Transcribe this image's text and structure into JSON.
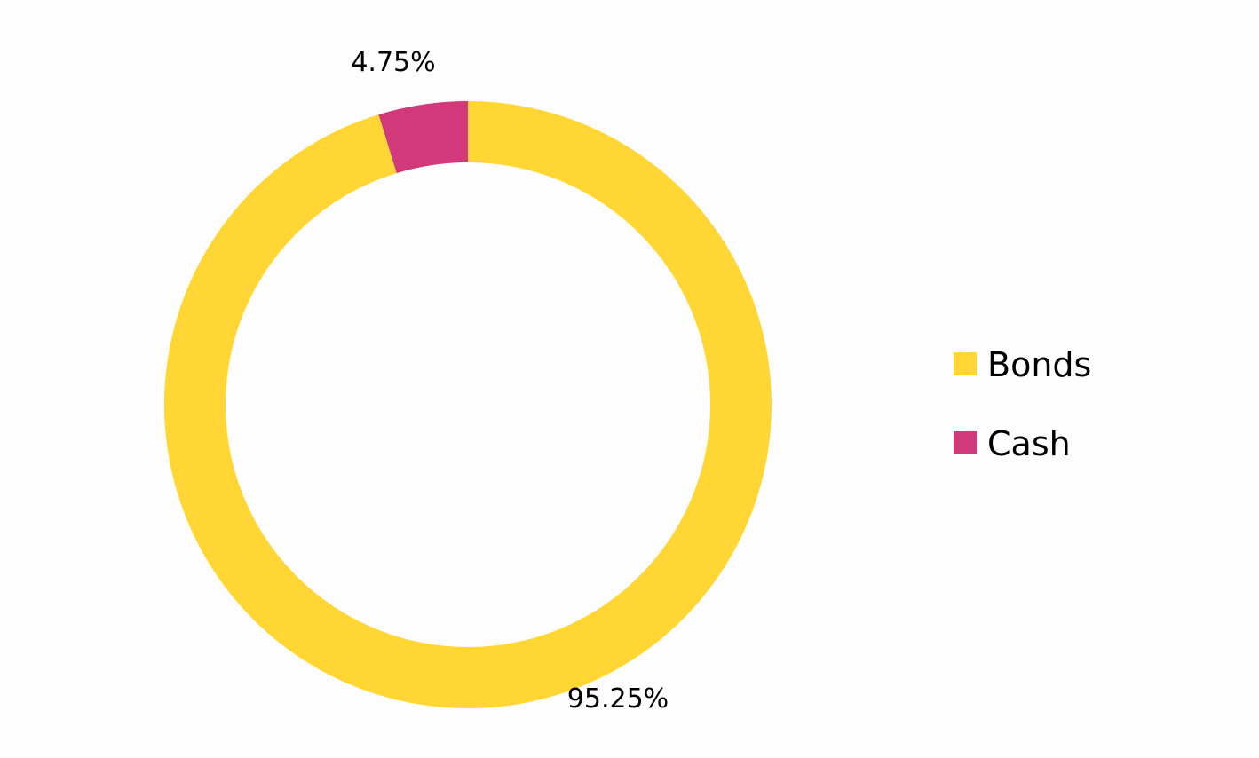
{
  "chart_data": {
    "type": "pie",
    "variant": "donut",
    "title": "",
    "series": [
      {
        "name": "",
        "slices": [
          {
            "label": "Bonds",
            "value": 95.25,
            "display": "95.25%",
            "color": "#FFD633"
          },
          {
            "label": "Cash",
            "value": 4.75,
            "display": "4.75%",
            "color": "#D1397A"
          }
        ]
      }
    ],
    "start_angle": "12 o'clock",
    "direction": "clockwise",
    "legend": {
      "position": "right",
      "entries": [
        "Bonds",
        "Cash"
      ]
    }
  }
}
